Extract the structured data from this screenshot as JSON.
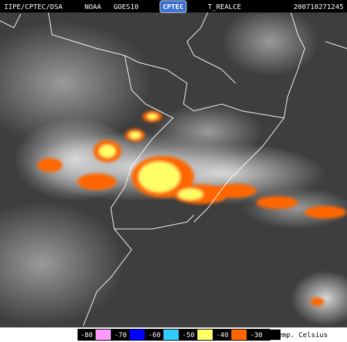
{
  "header": {
    "source": "IIPE/CPTEC/DSA",
    "agency": "NOAA",
    "satellite": "GOES10",
    "logo": "CPTEC",
    "product": "T_REALCE",
    "timestamp": "200710271245"
  },
  "legend": {
    "items": [
      {
        "label": "-80",
        "color": "#ff99ff"
      },
      {
        "label": "-70",
        "color": "#0000ff"
      },
      {
        "label": "-60",
        "color": "#33ccff"
      },
      {
        "label": "-50",
        "color": "#ffff66"
      },
      {
        "label": "-40",
        "color": "#ff6600"
      },
      {
        "label": "-30",
        "color": "#000000"
      }
    ],
    "title": "Temp. Celsius"
  }
}
